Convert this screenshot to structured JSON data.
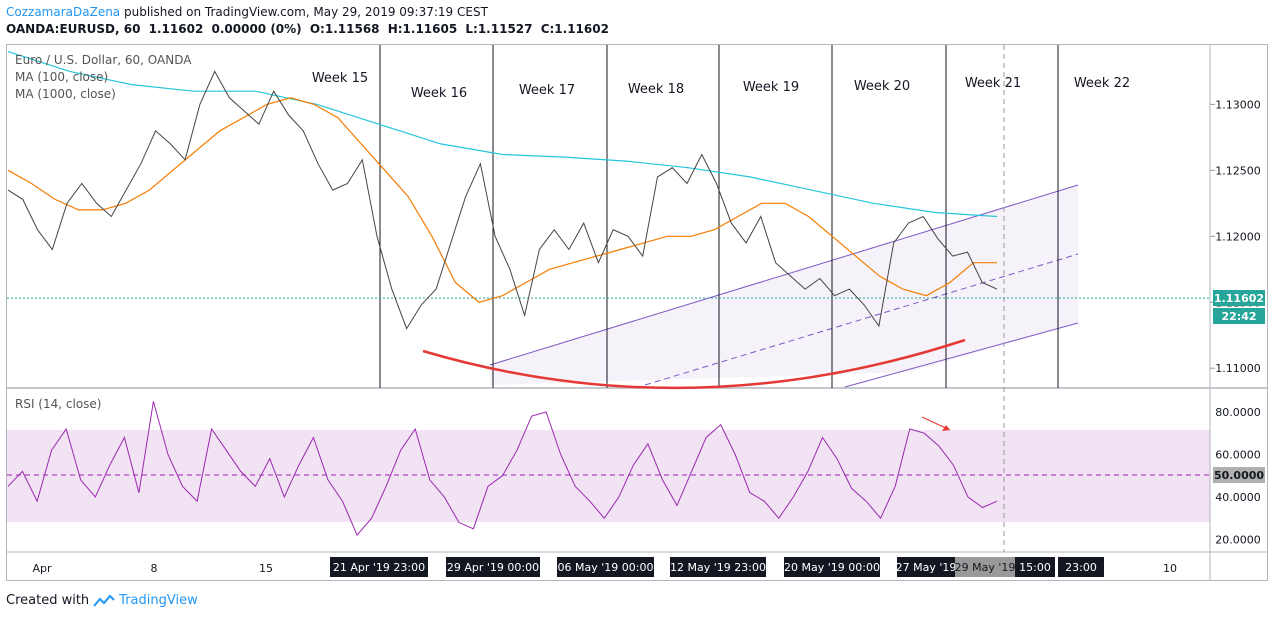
{
  "header": {
    "author": "CozzamaraDaZena",
    "published": " published on TradingView.com, May 29, 2019 09:37:19 CEST",
    "symbol": "OANDA:EURUSD, 60",
    "price": "1.11602",
    "change": "0.00000 (0%)",
    "open": "O:1.11568",
    "high": "H:1.11605",
    "low": "L:1.11527",
    "close": "C:1.11602"
  },
  "legend": {
    "title": "Euro / U.S. Dollar, 60, OANDA",
    "ma100": "MA (100, close)",
    "ma1000": "MA (1000, close)",
    "rsi": "RSI (14, close)"
  },
  "price_axis": {
    "ticks": [
      "1.13000",
      "1.12500",
      "1.12000",
      "1.11500",
      "1.11000"
    ],
    "tick_values": [
      1.13,
      1.125,
      1.12,
      1.115,
      1.11
    ],
    "current_price": "1.11602",
    "countdown": "22:42"
  },
  "rsi_axis": {
    "ticks": [
      "80.0000",
      "60.0000",
      "40.0000",
      "20.0000"
    ],
    "tick_values": [
      80,
      60,
      40,
      20
    ],
    "current": "50.0000",
    "upper": 70,
    "lower": 30
  },
  "time_axis": {
    "labels": [
      "Apr",
      "8",
      "15",
      "29 May '19",
      "10"
    ],
    "markers": [
      "21 Apr '19   23:00",
      "29 Apr '19   00:00",
      "06 May '19   00:00",
      "12 May '19   23:00",
      "20 May '19   00:00",
      "27 May '19",
      "15:00",
      "23:00"
    ]
  },
  "weeks": [
    "Week 15",
    "Week 16",
    "Week 17",
    "Week 18",
    "Week 19",
    "Week 20",
    "Week 21",
    "Week 22"
  ],
  "chart_data": {
    "type": "line",
    "title": "Euro / U.S. Dollar, 60, OANDA",
    "ylim": [
      1.1085,
      1.1345
    ],
    "series": [
      {
        "name": "EURUSD",
        "values": [
          1.1235,
          1.1228,
          1.1205,
          1.119,
          1.1225,
          1.124,
          1.1225,
          1.1215,
          1.1235,
          1.1255,
          1.128,
          1.127,
          1.1258,
          1.13,
          1.1325,
          1.1305,
          1.1295,
          1.1285,
          1.131,
          1.1292,
          1.128,
          1.1255,
          1.1235,
          1.124,
          1.1258,
          1.12,
          1.116,
          1.113,
          1.1148,
          1.116,
          1.1195,
          1.123,
          1.1255,
          1.12,
          1.1175,
          1.114,
          1.119,
          1.1205,
          1.119,
          1.121,
          1.118,
          1.1205,
          1.12,
          1.1185,
          1.1245,
          1.1252,
          1.124,
          1.1262,
          1.124,
          1.121,
          1.1195,
          1.1215,
          1.118,
          1.117,
          1.116,
          1.1168,
          1.1155,
          1.116,
          1.1148,
          1.1132,
          1.1195,
          1.121,
          1.1215,
          1.1198,
          1.1185,
          1.1188,
          1.1165,
          1.116
        ]
      },
      {
        "name": "MA (100, close)",
        "values": [
          1.125,
          1.124,
          1.1228,
          1.122,
          1.122,
          1.1225,
          1.1235,
          1.125,
          1.1265,
          1.128,
          1.129,
          1.13,
          1.1305,
          1.13,
          1.129,
          1.127,
          1.125,
          1.123,
          1.12,
          1.1165,
          1.115,
          1.1155,
          1.1165,
          1.1175,
          1.118,
          1.1185,
          1.119,
          1.1195,
          1.12,
          1.12,
          1.1205,
          1.1215,
          1.1225,
          1.1225,
          1.1215,
          1.12,
          1.1185,
          1.117,
          1.116,
          1.1155,
          1.1165,
          1.118,
          1.118
        ]
      },
      {
        "name": "MA (1000, close)",
        "values": [
          1.134,
          1.1325,
          1.1315,
          1.131,
          1.131,
          1.13,
          1.1285,
          1.127,
          1.1262,
          1.126,
          1.1257,
          1.1252,
          1.1245,
          1.1235,
          1.1225,
          1.1218,
          1.1215
        ]
      }
    ],
    "rsi": {
      "name": "RSI (14, close)",
      "values": [
        45,
        52,
        38,
        62,
        72,
        48,
        40,
        55,
        68,
        42,
        85,
        60,
        45,
        38,
        72,
        62,
        52,
        45,
        58,
        40,
        55,
        68,
        48,
        38,
        22,
        30,
        45,
        62,
        72,
        48,
        40,
        28,
        25,
        45,
        50,
        62,
        78,
        80,
        60,
        45,
        38,
        30,
        40,
        55,
        65,
        48,
        36,
        52,
        68,
        74,
        60,
        42,
        38,
        30,
        40,
        52,
        68,
        58,
        44,
        38,
        30,
        45,
        72,
        70,
        64,
        55,
        40,
        35,
        38
      ]
    },
    "annotations": {
      "channel": "ascending parallel channel",
      "curve": "rounded bottom (red)"
    }
  }
}
